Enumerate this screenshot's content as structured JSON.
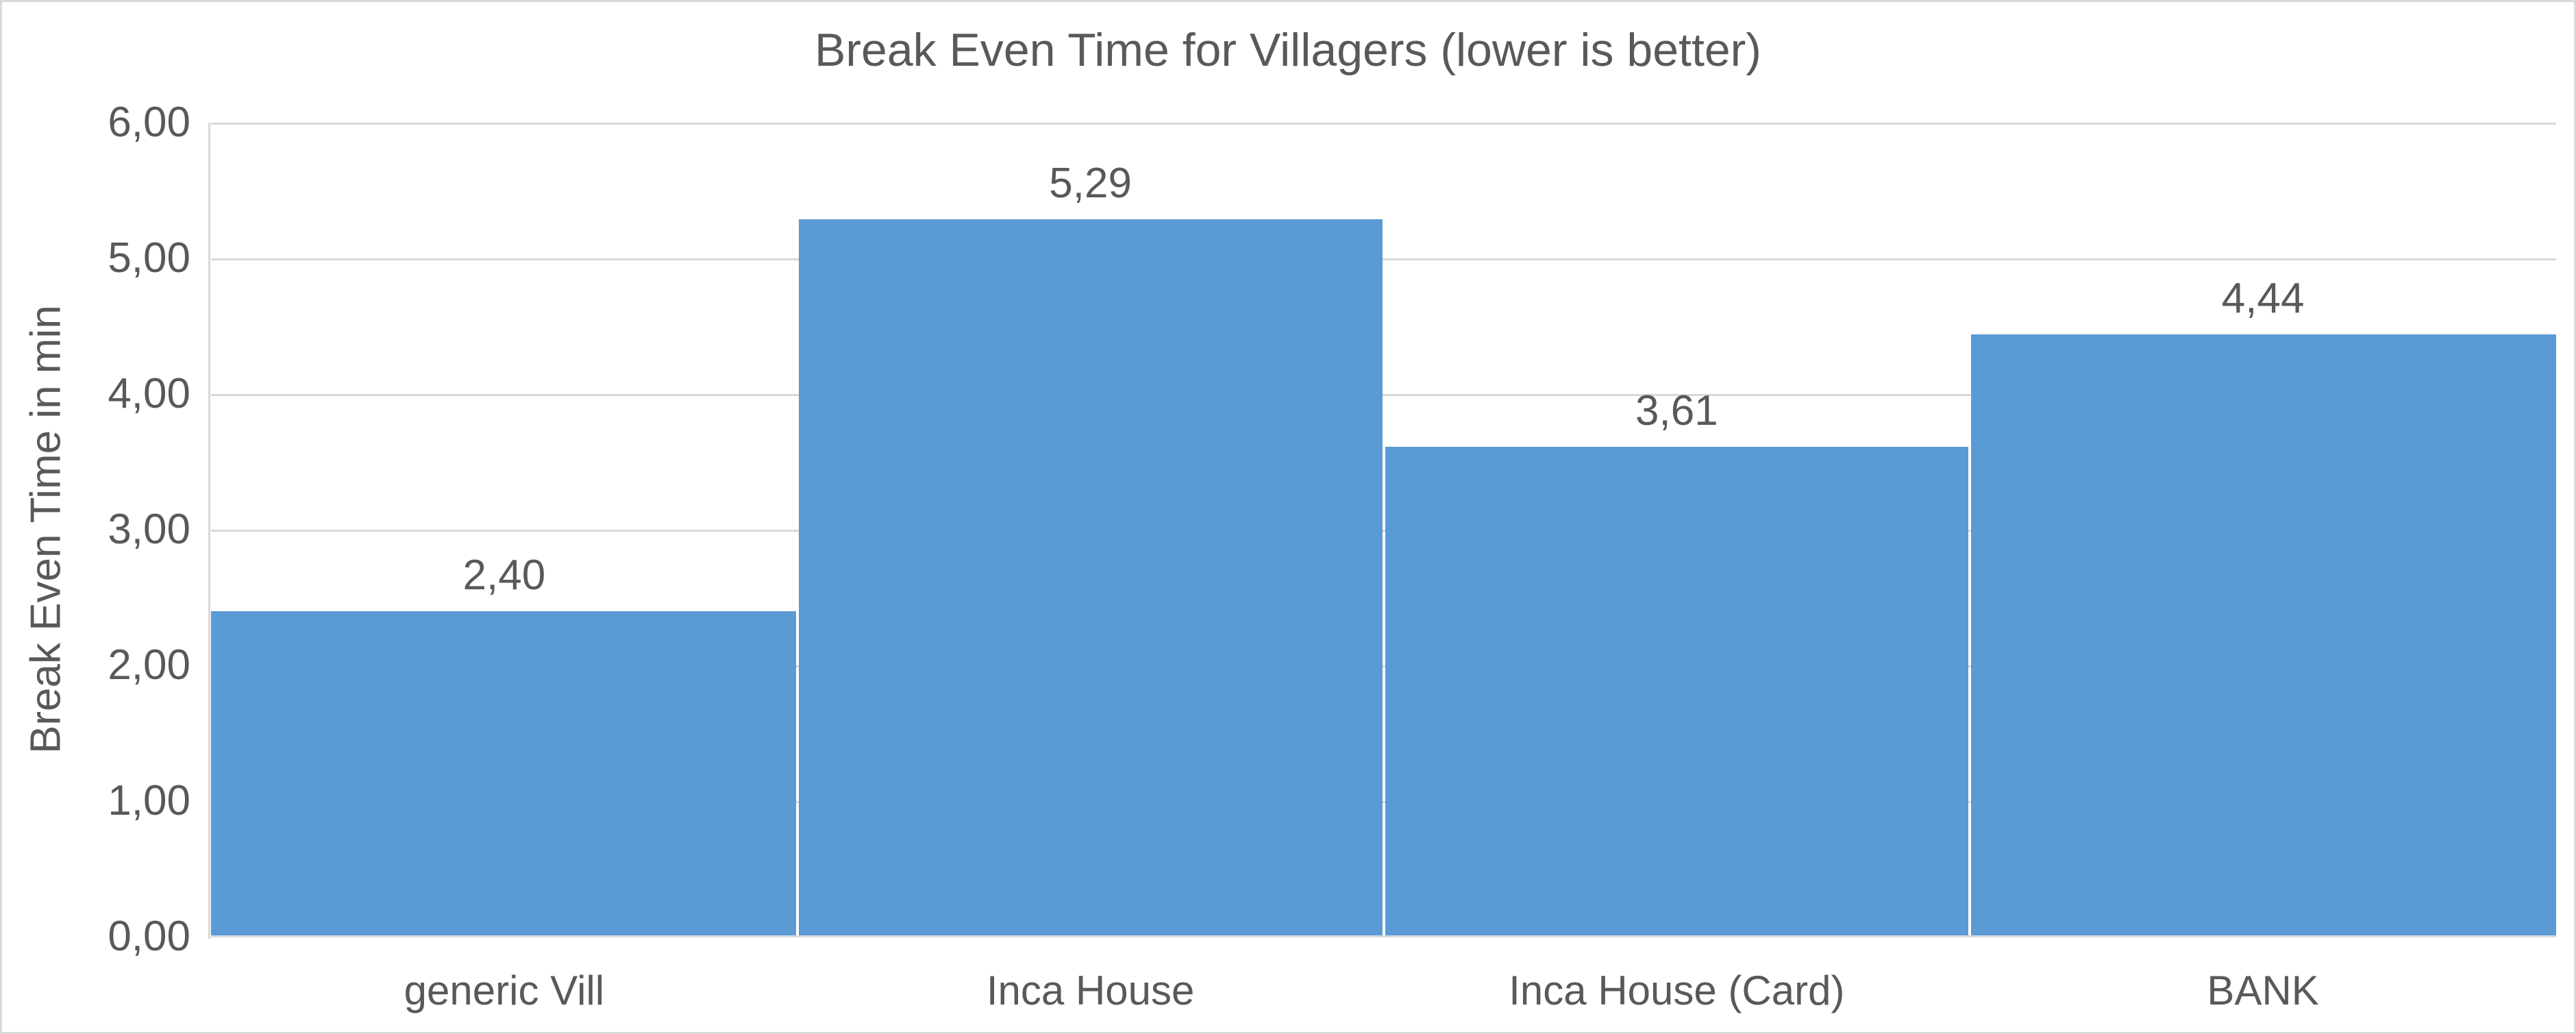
{
  "chart_data": {
    "type": "bar",
    "title": "Break Even Time for Villagers (lower is better)",
    "xlabel": "",
    "ylabel": "Break Even Time in min",
    "categories": [
      "generic Vill",
      "Inca House",
      "Inca House (Card)",
      "BANK"
    ],
    "values": [
      2.4,
      5.29,
      3.61,
      4.44
    ],
    "value_labels": [
      "2,40",
      "5,29",
      "3,61",
      "4,44"
    ],
    "ylim": [
      0,
      6
    ],
    "ytick_step": 1,
    "ytick_labels": [
      "0,00",
      "1,00",
      "2,00",
      "3,00",
      "4,00",
      "5,00",
      "6,00"
    ],
    "grid": true,
    "legend": false,
    "decimal_separator": ",",
    "colors": {
      "bar_fill": "#5B9BD5",
      "text": "#595959",
      "gridline": "#D9D9D9",
      "axis_line": "#D9D9D9",
      "chart_border": "#D9D9D9",
      "background": "#FFFFFF"
    }
  }
}
